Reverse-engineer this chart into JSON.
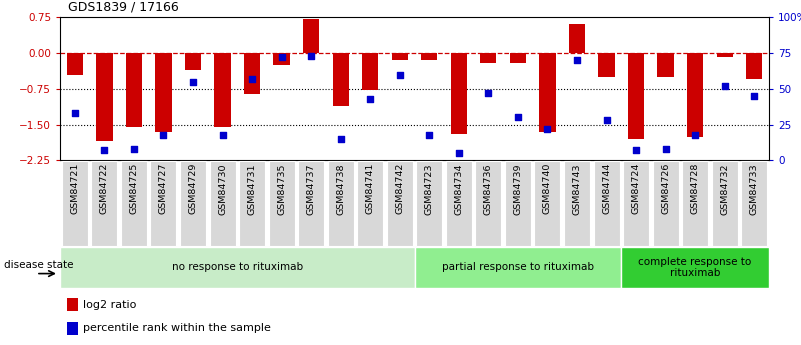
{
  "title": "GDS1839 / 17166",
  "samples": [
    "GSM84721",
    "GSM84722",
    "GSM84725",
    "GSM84727",
    "GSM84729",
    "GSM84730",
    "GSM84731",
    "GSM84735",
    "GSM84737",
    "GSM84738",
    "GSM84741",
    "GSM84742",
    "GSM84723",
    "GSM84734",
    "GSM84736",
    "GSM84739",
    "GSM84740",
    "GSM84743",
    "GSM84744",
    "GSM84724",
    "GSM84726",
    "GSM84728",
    "GSM84732",
    "GSM84733"
  ],
  "log2_ratio": [
    -0.45,
    -1.85,
    -1.55,
    -1.65,
    -0.35,
    -1.55,
    -0.85,
    -0.25,
    0.72,
    -1.1,
    -0.78,
    -0.15,
    -0.15,
    -1.7,
    -0.2,
    -0.2,
    -1.65,
    0.6,
    -0.5,
    -1.8,
    -0.5,
    -1.75,
    -0.08,
    -0.55
  ],
  "percentile_rank": [
    33,
    7,
    8,
    18,
    55,
    18,
    57,
    72,
    73,
    15,
    43,
    60,
    18,
    5,
    47,
    30,
    22,
    70,
    28,
    7,
    8,
    18,
    52,
    45
  ],
  "groups": [
    {
      "label": "no response to rituximab",
      "start": 0,
      "end": 12,
      "color": "#c8ecc8"
    },
    {
      "label": "partial response to rituximab",
      "start": 12,
      "end": 19,
      "color": "#90ee90"
    },
    {
      "label": "complete response to\nrituximab",
      "start": 19,
      "end": 24,
      "color": "#32cd32"
    }
  ],
  "bar_color": "#cc0000",
  "dot_color": "#0000cc",
  "ylim_left": [
    -2.25,
    0.75
  ],
  "ylim_right": [
    0,
    100
  ],
  "yticks_left": [
    0.75,
    0,
    -0.75,
    -1.5,
    -2.25
  ],
  "yticks_right": [
    100,
    75,
    50,
    25,
    0
  ],
  "dotted_lines": [
    -0.75,
    -1.5
  ],
  "disease_state_label": "disease state",
  "legend_items": [
    {
      "label": "log2 ratio",
      "color": "#cc0000"
    },
    {
      "label": "percentile rank within the sample",
      "color": "#0000cc"
    }
  ]
}
